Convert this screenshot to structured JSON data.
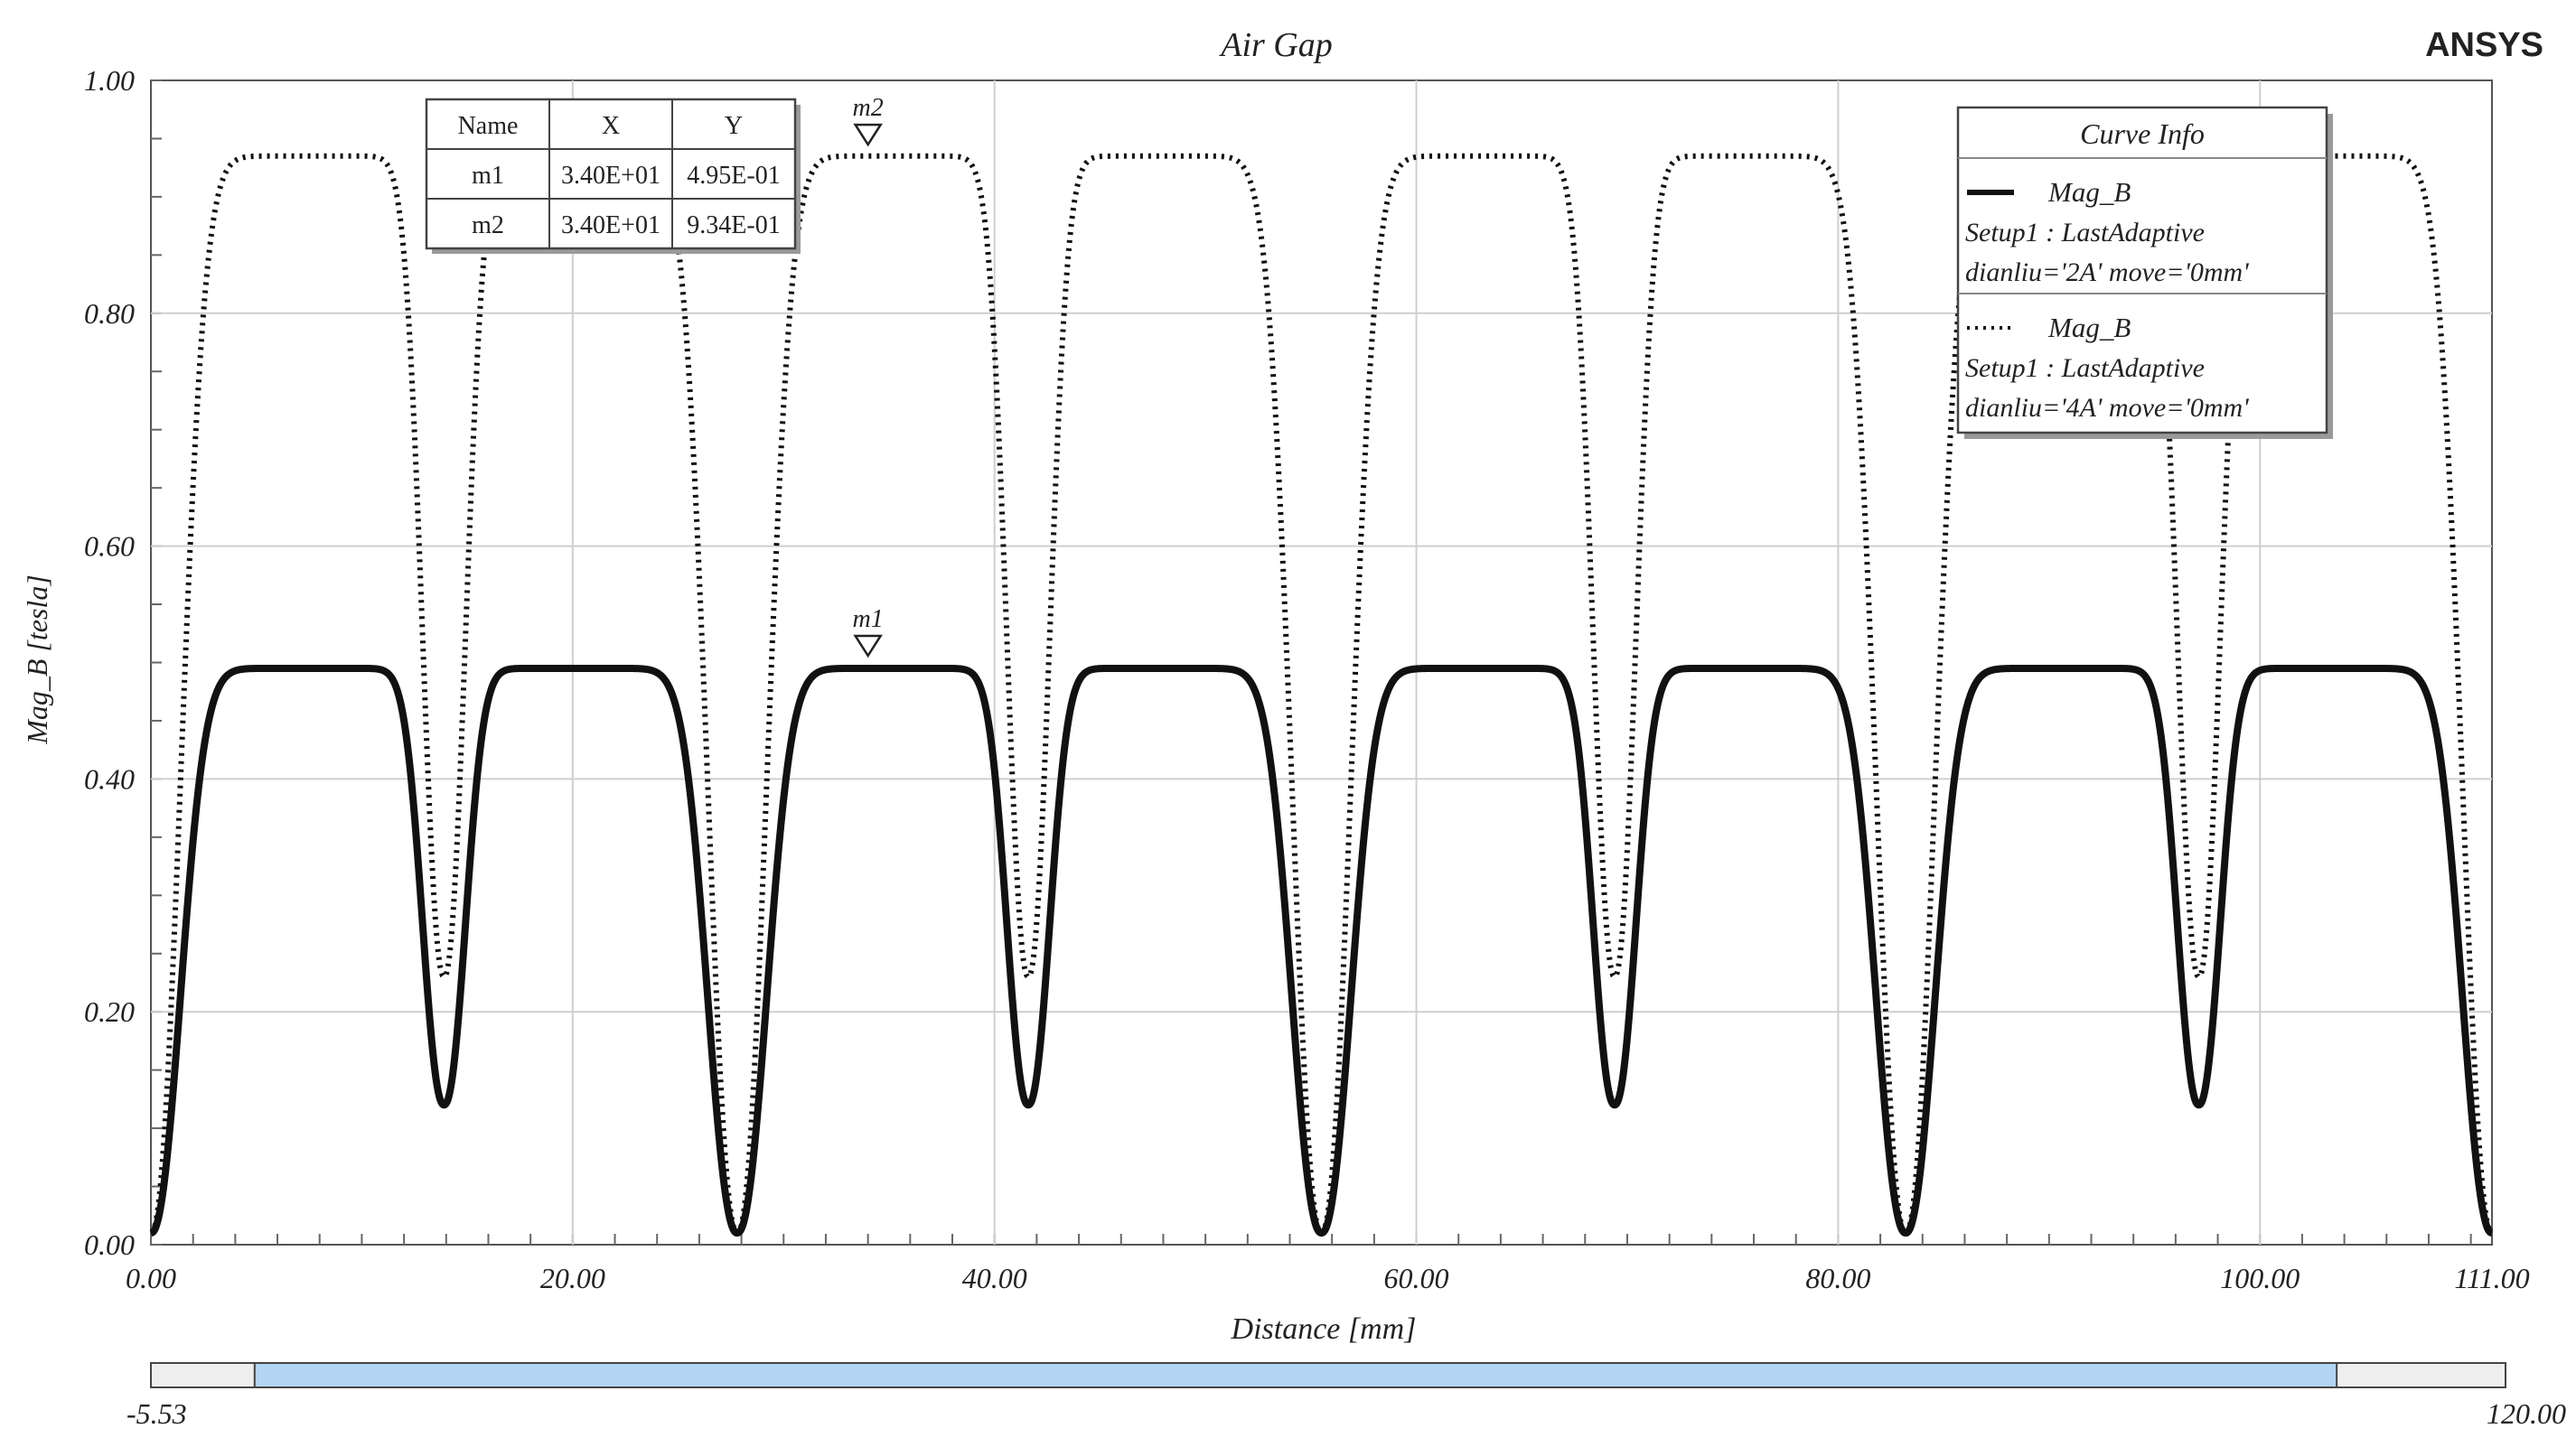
{
  "brand": "ANSYS",
  "chart_data": {
    "type": "line",
    "title": "Air Gap",
    "xlabel": "Distance [mm]",
    "ylabel": "Mag_B [tesla]",
    "xlim": [
      0,
      111
    ],
    "ylim": [
      0,
      1
    ],
    "xticks": [
      0,
      20,
      40,
      60,
      80,
      100,
      111
    ],
    "xtick_labels": [
      "0.00",
      "20.00",
      "40.00",
      "60.00",
      "80.00",
      "100.00",
      "111.00"
    ],
    "yticks": [
      0,
      0.2,
      0.4,
      0.6,
      0.8,
      1.0
    ],
    "ytick_labels": [
      "0.00",
      "0.20",
      "0.40",
      "0.60",
      "0.80",
      "1.00"
    ],
    "grid": true,
    "legend": {
      "title": "Curve Info",
      "placement": "top-right",
      "entries": [
        {
          "style": "solid",
          "name": "Mag_B",
          "line1": "Setup1 : LastAdaptive",
          "line2": "dianliu='2A' move='0mm'"
        },
        {
          "style": "dotted",
          "name": "Mag_B",
          "line1": "Setup1 : LastAdaptive",
          "line2": "dianliu='4A' move='0mm'"
        }
      ]
    },
    "series": [
      {
        "style": "solid",
        "plateau": 0.495,
        "dips": [
          {
            "x": 0,
            "min": 0.01
          },
          {
            "x": 13.9,
            "min": 0.12
          },
          {
            "x": 27.8,
            "min": 0.01
          },
          {
            "x": 41.6,
            "min": 0.12
          },
          {
            "x": 55.5,
            "min": 0.01
          },
          {
            "x": 69.4,
            "min": 0.12
          },
          {
            "x": 83.2,
            "min": 0.01
          },
          {
            "x": 97.1,
            "min": 0.12
          },
          {
            "x": 111,
            "min": 0.01
          }
        ]
      },
      {
        "style": "dotted",
        "plateau": 0.935,
        "dips": [
          {
            "x": 0,
            "min": 0.01
          },
          {
            "x": 13.9,
            "min": 0.23
          },
          {
            "x": 27.8,
            "min": 0.01
          },
          {
            "x": 41.6,
            "min": 0.23
          },
          {
            "x": 55.5,
            "min": 0.01
          },
          {
            "x": 69.4,
            "min": 0.23
          },
          {
            "x": 83.2,
            "min": 0.01
          },
          {
            "x": 97.1,
            "min": 0.23
          },
          {
            "x": 111,
            "min": 0.01
          }
        ]
      }
    ],
    "markers": [
      {
        "name": "m1",
        "x": 34.0,
        "y": 0.495
      },
      {
        "name": "m2",
        "x": 34.0,
        "y": 0.934
      }
    ],
    "marker_table": {
      "headers": [
        "Name",
        "X",
        "Y"
      ],
      "rows": [
        [
          "m1",
          "3.40E+01",
          "4.95E-01"
        ],
        [
          "m2",
          "3.40E+01",
          "9.34E-01"
        ]
      ]
    },
    "scrollbar": {
      "min_label": "-5.53",
      "max_label": "120.00",
      "range": [
        -5.53,
        120.0
      ],
      "thumb": [
        0,
        111
      ]
    }
  }
}
